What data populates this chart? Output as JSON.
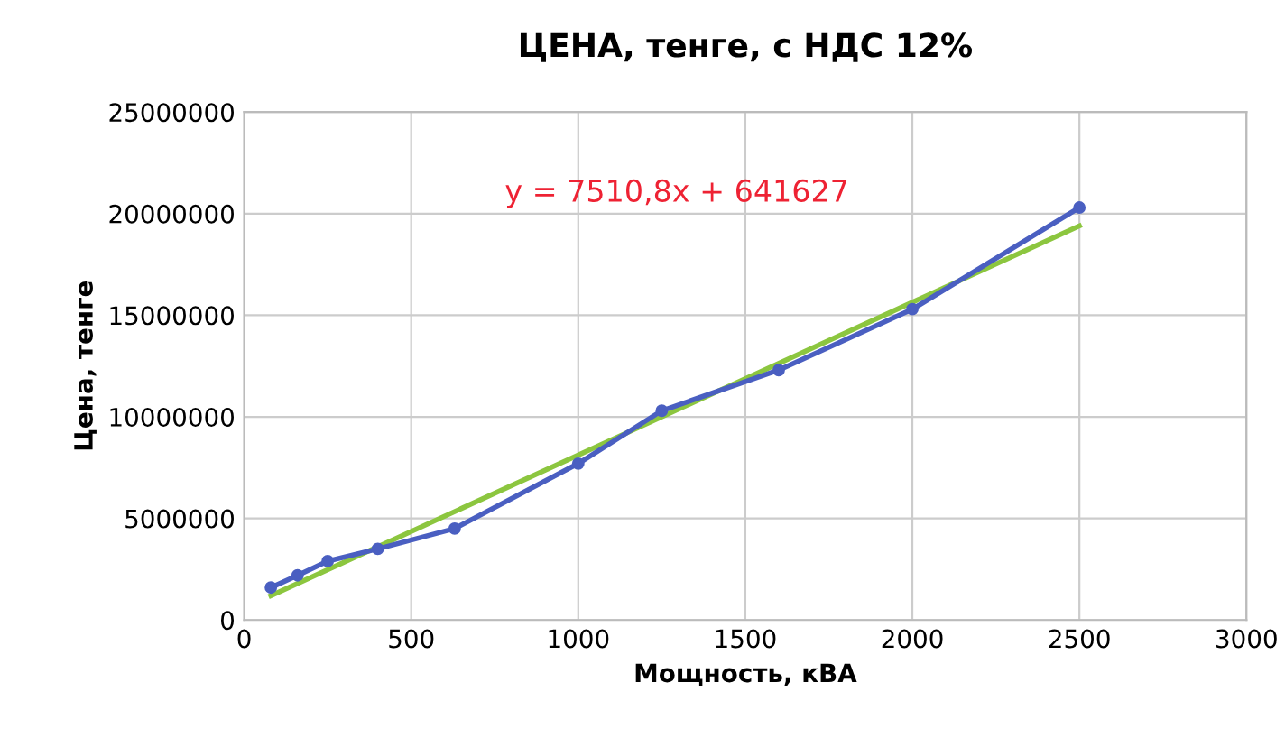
{
  "chart_data": {
    "type": "line",
    "title": "ЦЕНА, тенге, с НДС 12%",
    "xlabel": "Мощность, кВА",
    "ylabel": "Цена, тенге",
    "x": [
      80,
      160,
      250,
      400,
      630,
      1000,
      1250,
      1600,
      2000,
      2500
    ],
    "series": [
      {
        "color": "#4a5fc1",
        "marker": "circle",
        "values": [
          1600000,
          2200000,
          2900000,
          3500000,
          4500000,
          7700000,
          10300000,
          12300000,
          15300000,
          20300000
        ]
      },
      {
        "type": "line",
        "color": "#8cc63f",
        "marker": "none",
        "x": [
          80,
          2500
        ],
        "values": [
          1200000,
          19400000
        ]
      }
    ],
    "annotations": [
      "y = 7510,8x + 641627"
    ],
    "xlim": [
      0,
      3000
    ],
    "xticks": [
      0,
      500,
      1000,
      1500,
      2000,
      2500,
      3000
    ],
    "ylim": [
      0,
      25000000
    ],
    "yticks": [
      0,
      5000000,
      10000000,
      15000000,
      20000000,
      25000000
    ],
    "grid": true,
    "legend": false
  }
}
